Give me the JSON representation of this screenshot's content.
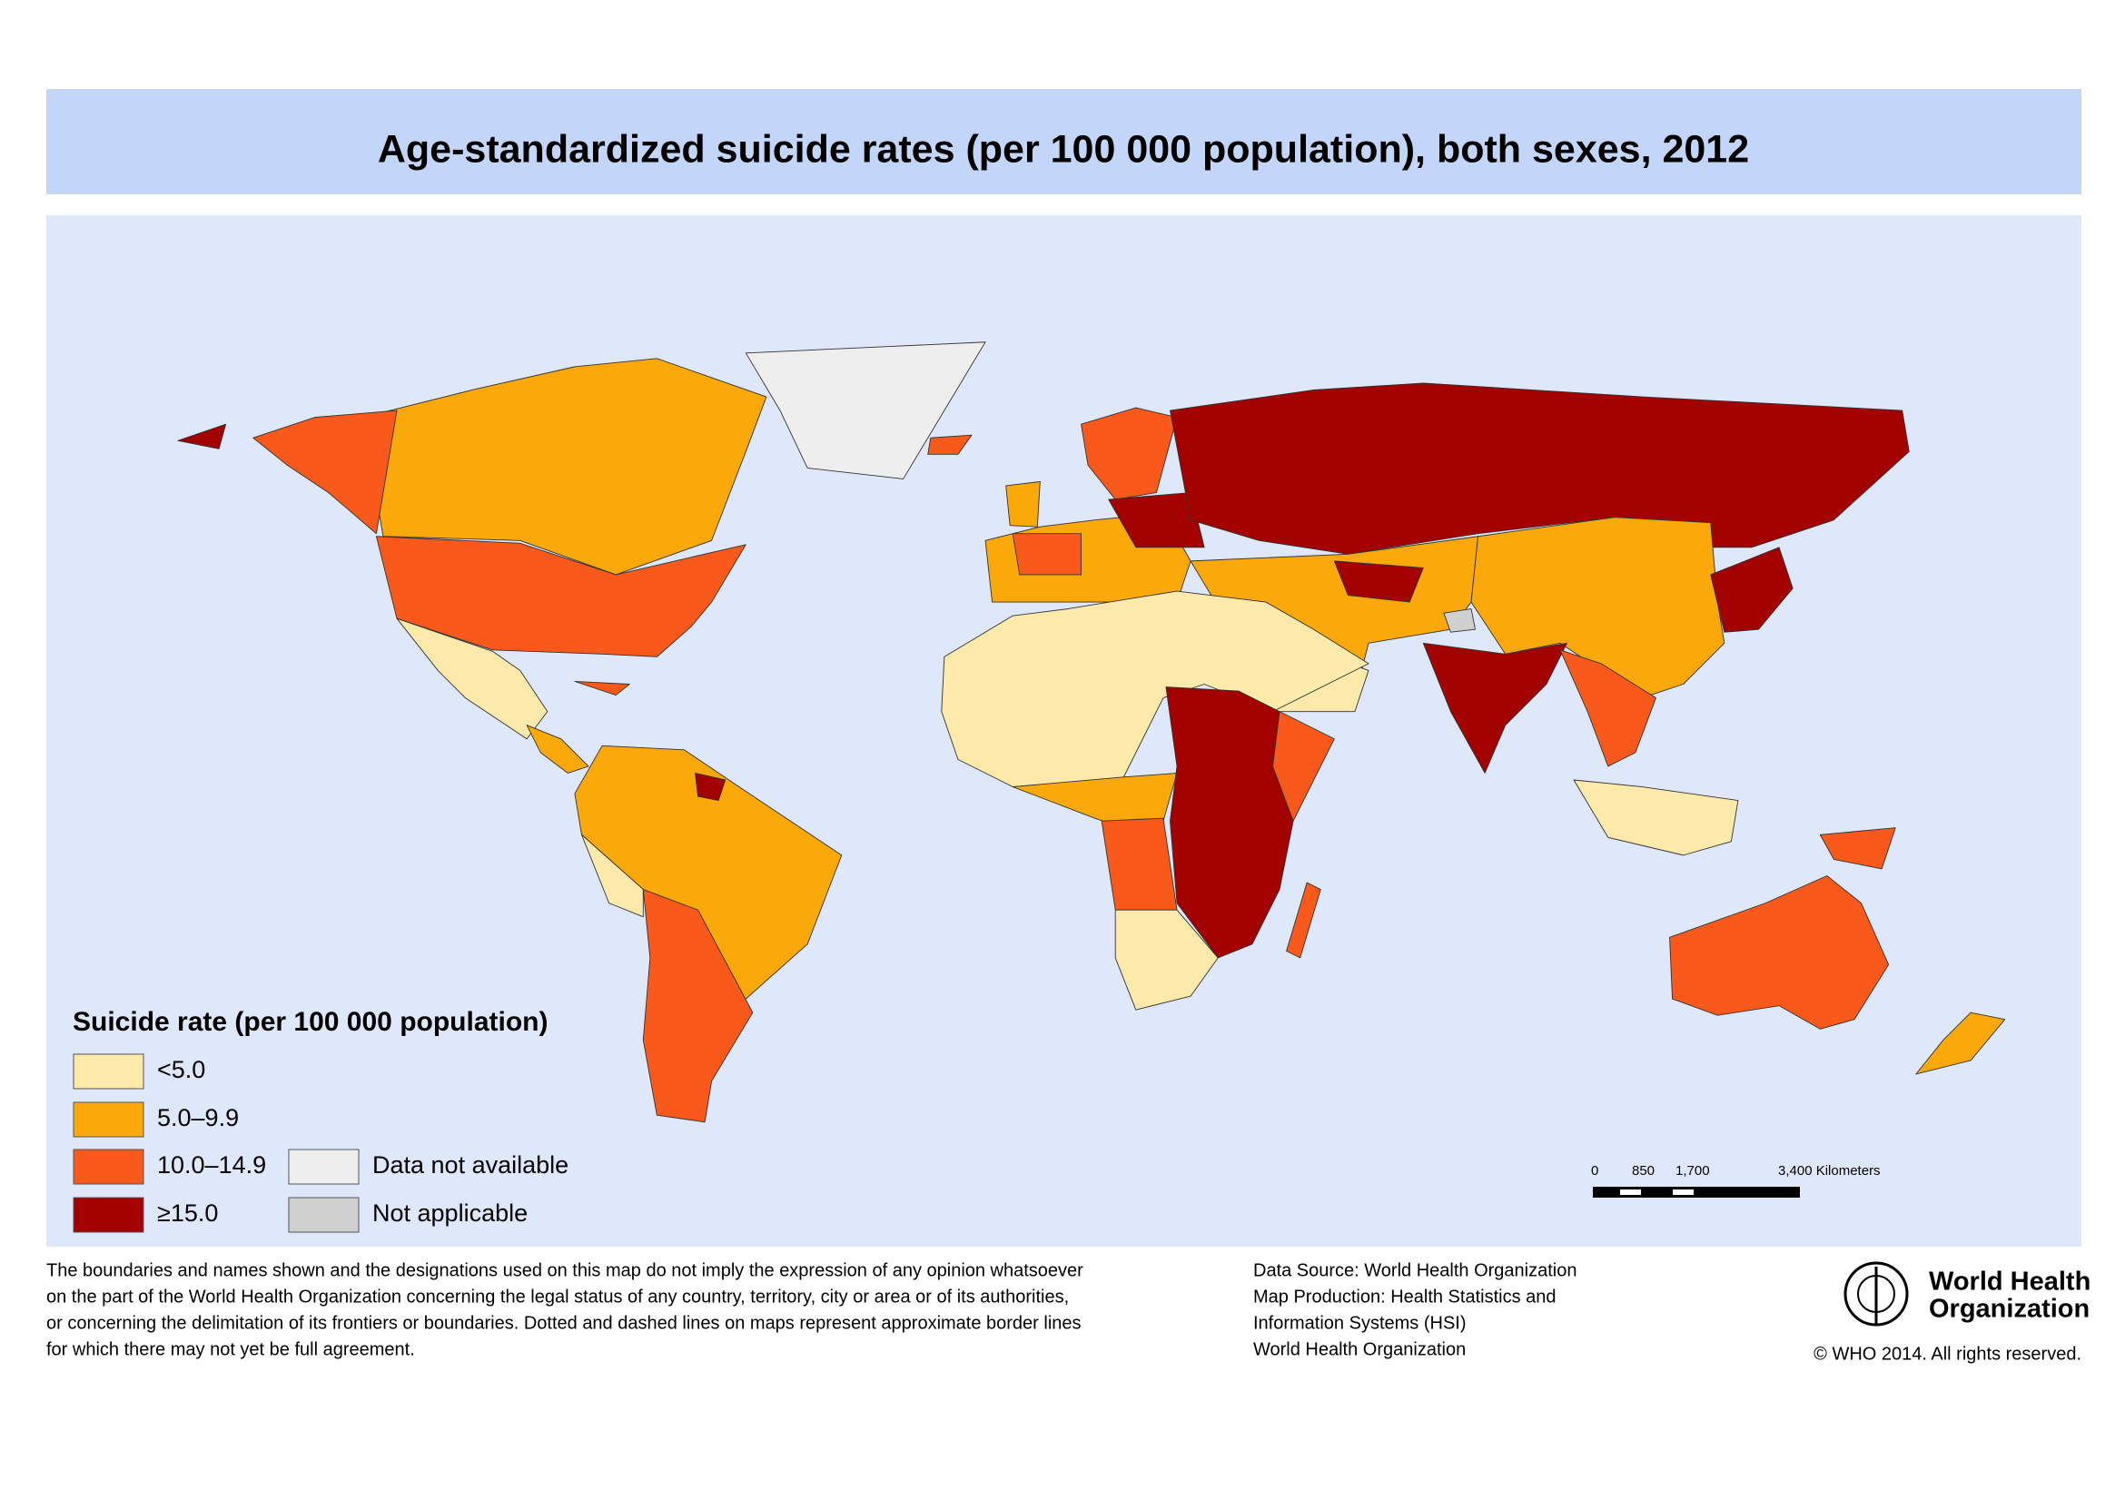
{
  "header": {
    "title": "Age-standardized suicide rates (per 100 000 population), both sexes, 2012"
  },
  "legend": {
    "title": "Suicide rate (per 100 000 population)",
    "items": [
      {
        "label": "<5.0",
        "color": "#fde9a9"
      },
      {
        "label": "5.0–9.9",
        "color": "#fba80a"
      },
      {
        "label": "10.0–14.9",
        "color": "#f9591a"
      },
      {
        "label": "≥15.0",
        "color": "#a30000"
      },
      {
        "label": "Data not available",
        "color": "#eeeeee"
      },
      {
        "label": "Not applicable",
        "color": "#d0d0d0"
      }
    ]
  },
  "scale_bar": {
    "labels": [
      "0",
      "850",
      "1,700",
      "3,400 Kilometers"
    ]
  },
  "disclaimer": [
    "The boundaries and names shown and the designations used on this map do not imply the expression of any opinion whatsoever",
    "on the part of the World Health Organization concerning the legal status of any country, territory, city or area or of its authorities,",
    "or concerning the delimitation of its frontiers or boundaries. Dotted and dashed lines on maps represent approximate border lines",
    "for which there may not yet be full agreement."
  ],
  "source": [
    "Data Source: World Health Organization",
    "Map Production: Health Statistics and",
    "Information Systems (HSI)",
    "World Health Organization"
  ],
  "logo": [
    "World Health",
    "Organization"
  ],
  "copyright": "© WHO 2014. All rights reserved."
}
